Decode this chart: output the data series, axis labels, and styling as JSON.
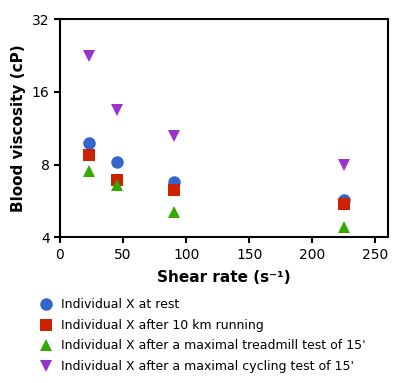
{
  "series": [
    {
      "label": "Individual X at rest",
      "color": "#3366CC",
      "marker": "o",
      "x": [
        23,
        45,
        90,
        225
      ],
      "y": [
        9.8,
        8.2,
        6.8,
        5.7
      ]
    },
    {
      "label": "Individual X after 10 km running",
      "color": "#CC2200",
      "marker": "s",
      "x": [
        23,
        45,
        90,
        225
      ],
      "y": [
        8.8,
        6.9,
        6.3,
        5.5
      ]
    },
    {
      "label": "Individual X after a maximal treadmill test of 15'",
      "color": "#33AA00",
      "marker": "^",
      "x": [
        23,
        45,
        90,
        225
      ],
      "y": [
        7.5,
        6.6,
        5.1,
        4.4
      ]
    },
    {
      "label": "Individual X after a maximal cycling test of 15'",
      "color": "#9933CC",
      "marker": "v",
      "x": [
        23,
        45,
        90,
        225
      ],
      "y": [
        22.5,
        13.5,
        10.5,
        8.0
      ]
    }
  ],
  "xlabel": "Shear rate (s⁻¹)",
  "ylabel": "Blood viscosity (cP)",
  "xlim": [
    0,
    260
  ],
  "ylim": [
    4,
    32
  ],
  "xticks": [
    0,
    50,
    100,
    150,
    200,
    250
  ],
  "yticks": [
    4,
    8,
    16,
    32
  ],
  "markersize": 9,
  "legend_fontsize": 9,
  "axis_label_fontsize": 11,
  "tick_fontsize": 10
}
